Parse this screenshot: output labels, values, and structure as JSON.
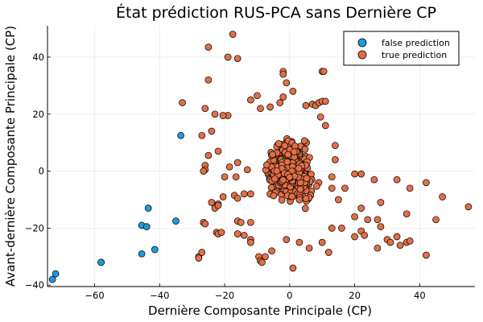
{
  "chart_data": {
    "type": "scatter",
    "title": "État prédiction RUS-PCA sans Dernière CP",
    "xlabel": "Dernière Composante Principale (CP)",
    "ylabel": "Avant-dernière Composante Principale (CP)",
    "xlim": [
      -74.5,
      57
    ],
    "ylim": [
      -40.5,
      51
    ],
    "xticks": [
      -60,
      -40,
      -20,
      0,
      20,
      40
    ],
    "yticks": [
      -40,
      -20,
      0,
      20,
      40
    ],
    "grid": true,
    "legend_position": "top-right",
    "series": [
      {
        "name": "false prediction",
        "color": "#1f9ae0",
        "points": [
          [
            -72,
            -36
          ],
          [
            -73,
            -38
          ],
          [
            -58,
            -32
          ],
          [
            -58,
            -32
          ],
          [
            -45.5,
            -29
          ],
          [
            -41.5,
            -27.5
          ],
          [
            -45.5,
            -19
          ],
          [
            -44,
            -19.5
          ],
          [
            -43.5,
            -13
          ],
          [
            -35,
            -17.5
          ],
          [
            -33.5,
            12.5
          ]
        ]
      },
      {
        "name": "true prediction",
        "color": "#e26f46",
        "points": [
          [
            -25,
            43.5
          ],
          [
            -17.5,
            48
          ],
          [
            -19,
            40
          ],
          [
            -16,
            39.5
          ],
          [
            -25,
            32
          ],
          [
            -26,
            22
          ],
          [
            -23,
            20
          ],
          [
            -19,
            19.5
          ],
          [
            -20.5,
            19.5
          ],
          [
            -24,
            14
          ],
          [
            -27,
            12.5
          ],
          [
            -25,
            5.5
          ],
          [
            -22,
            7
          ],
          [
            -26,
            2
          ],
          [
            -26,
            0.5
          ],
          [
            -26.5,
            0
          ],
          [
            -18.5,
            1.5
          ],
          [
            -16,
            3
          ],
          [
            -20,
            -2
          ],
          [
            -16.5,
            -2
          ],
          [
            -13,
            0.5
          ],
          [
            -20.5,
            -9
          ],
          [
            -17,
            -8.5
          ],
          [
            -16,
            -9.5
          ],
          [
            -14,
            -8
          ],
          [
            -12,
            -8
          ],
          [
            -22,
            -11.5
          ],
          [
            -24,
            -11
          ],
          [
            -23,
            -13
          ],
          [
            -22,
            -12
          ],
          [
            -26.5,
            -18
          ],
          [
            -26,
            -18.5
          ],
          [
            -22.5,
            -21.5
          ],
          [
            -22,
            -22
          ],
          [
            -21,
            -21.5
          ],
          [
            -16,
            -17.5
          ],
          [
            -15,
            -18
          ],
          [
            -12,
            -18
          ],
          [
            -16,
            -22
          ],
          [
            -14,
            -22.5
          ],
          [
            -12,
            -24
          ],
          [
            -12,
            -25
          ],
          [
            -28,
            -30
          ],
          [
            -28,
            -30.5
          ],
          [
            -27,
            -28.5
          ],
          [
            -9.5,
            -30
          ],
          [
            -9,
            -31.5
          ],
          [
            -8.5,
            -32
          ],
          [
            -7.5,
            -30
          ],
          [
            -5.5,
            -28
          ],
          [
            1,
            -34
          ],
          [
            -1,
            -24
          ],
          [
            3,
            -25
          ],
          [
            6,
            -27
          ],
          [
            10,
            -25
          ],
          [
            12,
            -28.5
          ],
          [
            -12,
            25
          ],
          [
            -10,
            26.5
          ],
          [
            -9,
            22
          ],
          [
            -6,
            22.5
          ],
          [
            -3,
            24
          ],
          [
            -2,
            26
          ],
          [
            -2,
            35
          ],
          [
            -2,
            34
          ],
          [
            -1,
            31
          ],
          [
            10,
            35
          ],
          [
            10.5,
            35
          ],
          [
            1,
            28
          ],
          [
            5,
            23
          ],
          [
            7,
            23.5
          ],
          [
            8,
            23
          ],
          [
            9,
            24
          ],
          [
            10,
            24.5
          ],
          [
            11,
            24.5
          ],
          [
            9.5,
            19
          ],
          [
            11,
            16
          ],
          [
            14,
            9
          ],
          [
            14,
            4
          ],
          [
            13,
            -2
          ],
          [
            13,
            -6
          ],
          [
            15,
            -10
          ],
          [
            17,
            -6
          ],
          [
            20,
            -1
          ],
          [
            22,
            -1
          ],
          [
            26,
            -3
          ],
          [
            33,
            -3
          ],
          [
            37,
            -6
          ],
          [
            42,
            -4
          ],
          [
            47,
            -9
          ],
          [
            55,
            -12.5
          ],
          [
            45,
            -17
          ],
          [
            36,
            -15
          ],
          [
            28,
            -11
          ],
          [
            22,
            -13
          ],
          [
            20,
            -16
          ],
          [
            24,
            -17
          ],
          [
            27,
            -17
          ],
          [
            28,
            -19.5
          ],
          [
            22,
            -21
          ],
          [
            23,
            -22.5
          ],
          [
            30,
            -24
          ],
          [
            31,
            -25
          ],
          [
            34,
            -26
          ],
          [
            36,
            -25
          ],
          [
            37,
            -24.5
          ],
          [
            33,
            -23
          ],
          [
            42,
            -29.5
          ],
          [
            27,
            -27
          ],
          [
            20,
            -23
          ],
          [
            16,
            -20
          ],
          [
            13,
            -20
          ],
          [
            -33,
            24
          ]
        ]
      }
    ]
  }
}
